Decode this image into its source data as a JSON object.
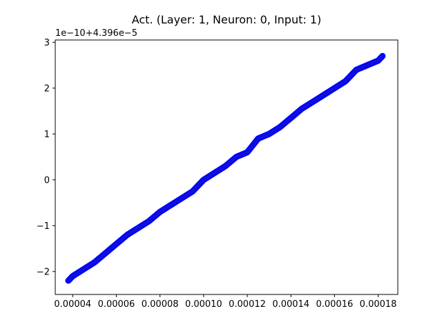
{
  "chart_data": {
    "type": "line",
    "title": "Act. (Layer: 1, Neuron: 0, Input: 1)",
    "xlabel": "",
    "ylabel": "",
    "y_offset_label": "1e−10+4.396e−5",
    "xlim": [
      3.2e-05,
      0.000189
    ],
    "ylim": [
      -2.5,
      3.05
    ],
    "x_ticks": [
      {
        "value": 4e-05,
        "label": "0.00004"
      },
      {
        "value": 6e-05,
        "label": "0.00006"
      },
      {
        "value": 8e-05,
        "label": "0.00008"
      },
      {
        "value": 0.0001,
        "label": "0.00010"
      },
      {
        "value": 0.00012,
        "label": "0.00012"
      },
      {
        "value": 0.00014,
        "label": "0.00014"
      },
      {
        "value": 0.00016,
        "label": "0.00016"
      },
      {
        "value": 0.00018,
        "label": "0.00018"
      }
    ],
    "y_ticks": [
      {
        "value": -2,
        "label": "−2"
      },
      {
        "value": -1,
        "label": "−1"
      },
      {
        "value": 0,
        "label": "0"
      },
      {
        "value": 1,
        "label": "1"
      },
      {
        "value": 2,
        "label": "2"
      },
      {
        "value": 3,
        "label": "3"
      }
    ],
    "grid": false,
    "series": [
      {
        "color": "#0000ff",
        "x": [
          3.8e-05,
          4e-05,
          4.5e-05,
          5e-05,
          5.5e-05,
          6e-05,
          6.5e-05,
          7e-05,
          7.5e-05,
          8e-05,
          8.5e-05,
          9e-05,
          9.5e-05,
          0.0001,
          0.000105,
          0.00011,
          0.000115,
          0.00012,
          0.000125,
          0.00013,
          0.000135,
          0.00014,
          0.000145,
          0.00015,
          0.000155,
          0.00016,
          0.000165,
          0.00017,
          0.000175,
          0.00018,
          0.000182
        ],
        "y": [
          -2.2,
          -2.1,
          -1.95,
          -1.8,
          -1.6,
          -1.4,
          -1.2,
          -1.05,
          -0.9,
          -0.7,
          -0.55,
          -0.4,
          -0.25,
          0.0,
          0.15,
          0.3,
          0.5,
          0.6,
          0.9,
          1.0,
          1.15,
          1.35,
          1.55,
          1.7,
          1.85,
          2.0,
          2.15,
          2.4,
          2.5,
          2.6,
          2.7
        ]
      }
    ]
  }
}
